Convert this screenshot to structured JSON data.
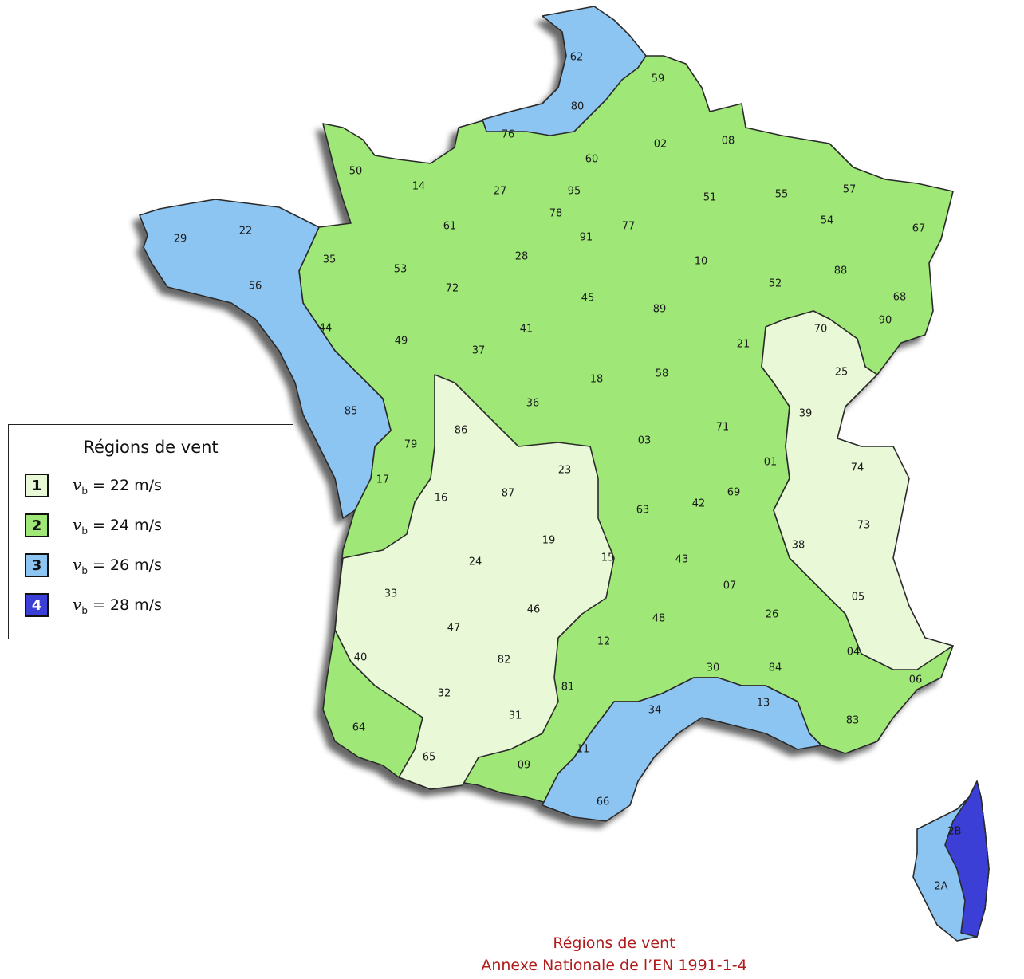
{
  "legend": {
    "title": "Régions de vent",
    "symbol": "v",
    "subscript": "b",
    "entries": [
      {
        "num": "1",
        "value": "= 22 m/s",
        "color": "#e9f8d6"
      },
      {
        "num": "2",
        "value": "= 24 m/s",
        "color": "#9fe878"
      },
      {
        "num": "3",
        "value": "= 26 m/s",
        "color": "#8cc4f2"
      },
      {
        "num": "4",
        "value": "= 28 m/s",
        "color": "#3b3fd6"
      }
    ]
  },
  "caption": {
    "line1": "Régions de vent",
    "line2": "Annexe Nationale de l’EN 1991-1-4"
  },
  "colors": {
    "region1": "#e9f8d6",
    "region2": "#9fe878",
    "region3": "#8cc4f2",
    "region4": "#3b3fd6",
    "border": "#2a2a2a",
    "region_edge": "#4a90d9",
    "caption": "#b01c1c"
  },
  "departments": [
    "62",
    "59",
    "80",
    "76",
    "02",
    "08",
    "60",
    "50",
    "14",
    "27",
    "95",
    "57",
    "55",
    "51",
    "78",
    "67",
    "54",
    "29",
    "22",
    "61",
    "91",
    "77",
    "35",
    "28",
    "53",
    "10",
    "88",
    "56",
    "52",
    "72",
    "68",
    "45",
    "89",
    "90",
    "70",
    "44",
    "49",
    "41",
    "21",
    "37",
    "25",
    "18",
    "58",
    "36",
    "39",
    "85",
    "86",
    "71",
    "03",
    "79",
    "23",
    "74",
    "01",
    "16",
    "87",
    "17",
    "63",
    "42",
    "69",
    "73",
    "19",
    "24",
    "15",
    "38",
    "43",
    "33",
    "07",
    "05",
    "46",
    "47",
    "26",
    "48",
    "12",
    "04",
    "40",
    "82",
    "84",
    "06",
    "30",
    "32",
    "81",
    "13",
    "34",
    "31",
    "83",
    "64",
    "11",
    "65",
    "09",
    "66",
    "2B",
    "2A"
  ]
}
